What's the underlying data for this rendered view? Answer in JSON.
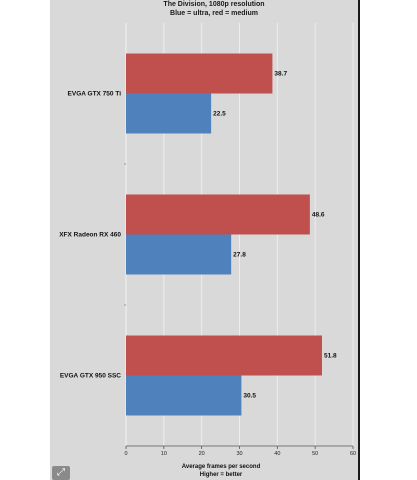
{
  "chart_data": {
    "type": "bar",
    "orientation": "horizontal",
    "title": "The Division, 1080p resolution",
    "subtitle": "Blue = ultra, red = medium",
    "categories": [
      "EVGA GTX 750 Ti",
      "XFX Radeon RX 460",
      "EVGA GTX 950 SSC"
    ],
    "series": [
      {
        "key": "medium",
        "color": "#c0504d",
        "values": [
          38.7,
          48.6,
          51.8
        ]
      },
      {
        "key": "ultra",
        "color": "#4f81bd",
        "values": [
          22.5,
          27.8,
          30.5
        ]
      }
    ],
    "xlabel": "Average frames per second",
    "xlabel2": "Higher = better",
    "xlim": [
      0,
      60
    ],
    "xticks": [
      0,
      10,
      20,
      30,
      40,
      50,
      60
    ],
    "grid": true,
    "legend": "none"
  },
  "ui": {
    "expand_icon": "expand-icon",
    "expand_glyph": "⤢",
    "panel_bg": "#d9d9d9"
  }
}
